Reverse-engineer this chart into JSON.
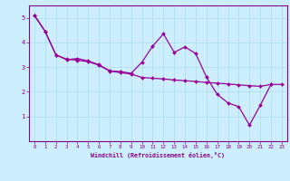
{
  "xlabel": "Windchill (Refroidissement éolien,°C)",
  "bg_color": "#cceeff",
  "line_color": "#990099",
  "x_data": [
    0,
    1,
    2,
    3,
    4,
    5,
    6,
    7,
    8,
    9,
    10,
    11,
    12,
    13,
    14,
    15,
    16,
    17,
    18,
    19,
    20,
    21,
    22,
    23
  ],
  "y_jagged": [
    5.1,
    4.45,
    3.5,
    3.3,
    3.35,
    3.25,
    3.1,
    2.85,
    2.82,
    2.75,
    3.2,
    3.85,
    4.35,
    3.6,
    3.82,
    3.55,
    2.6,
    1.9,
    1.55,
    1.4,
    0.65,
    1.45,
    2.3,
    null
  ],
  "y_smooth": [
    5.1,
    4.45,
    3.5,
    3.32,
    3.28,
    3.22,
    3.08,
    2.84,
    2.78,
    2.72,
    2.58,
    2.55,
    2.52,
    2.48,
    2.45,
    2.42,
    2.38,
    2.35,
    2.32,
    2.28,
    2.25,
    2.22,
    2.3,
    2.3
  ],
  "xlim": [
    -0.5,
    23.5
  ],
  "ylim": [
    0,
    5.5
  ],
  "yticks": [
    1,
    2,
    3,
    4,
    5
  ],
  "xticks": [
    0,
    1,
    2,
    3,
    4,
    5,
    6,
    7,
    8,
    9,
    10,
    11,
    12,
    13,
    14,
    15,
    16,
    17,
    18,
    19,
    20,
    21,
    22,
    23
  ],
  "grid_color": "#aaddee",
  "spine_color": "#880088",
  "tick_color": "#880088",
  "font_color": "#880088"
}
